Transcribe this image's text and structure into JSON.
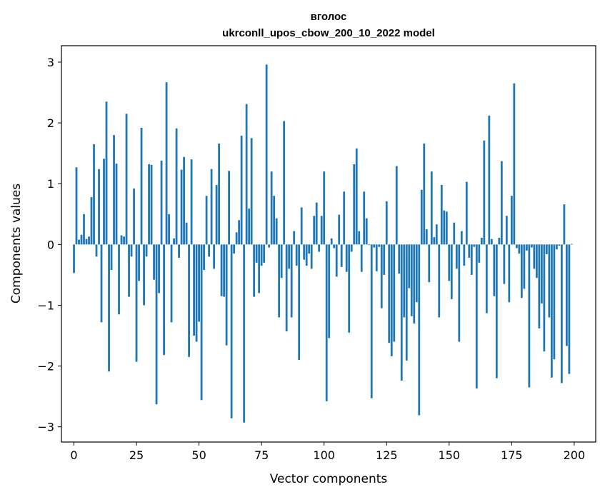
{
  "chart_data": {
    "type": "bar",
    "title_line1": "вголос",
    "title_line2": "ukrconll_upos_cbow_200_10_2022 model",
    "xlabel": "Vector components",
    "ylabel": "Components values",
    "xlim": [
      -5.0,
      208.6
    ],
    "ylim": [
      -3.25,
      3.27
    ],
    "xticks": [
      0,
      25,
      50,
      75,
      100,
      125,
      150,
      175,
      200
    ],
    "yticks": [
      3,
      2,
      1,
      0,
      -1,
      -2,
      -3
    ],
    "bar_color": "#1f77b4",
    "grid": false,
    "legend": "none",
    "values": [
      -0.47,
      1.27,
      0.08,
      0.16,
      0.5,
      0.09,
      0.13,
      0.78,
      1.65,
      -0.2,
      1.24,
      -1.28,
      1.41,
      2.35,
      -2.09,
      -0.42,
      1.8,
      1.33,
      -1.15,
      0.15,
      0.13,
      2.15,
      -0.86,
      -0.2,
      0.92,
      -1.93,
      -0.6,
      1.92,
      -1.0,
      -0.2,
      1.32,
      1.31,
      -0.58,
      -2.63,
      -0.8,
      1.38,
      -1.82,
      2.67,
      0.5,
      -1.28,
      0.1,
      1.91,
      -0.22,
      1.23,
      1.44,
      0.36,
      -1.85,
      1.4,
      -1.5,
      -1.6,
      -1.27,
      -2.56,
      -0.42,
      0.8,
      -0.2,
      1.24,
      -0.4,
      0.98,
      1.66,
      -0.85,
      -0.86,
      -1.66,
      1.21,
      -2.86,
      -0.15,
      0.2,
      0.4,
      1.79,
      -2.93,
      2.31,
      0.59,
      1.75,
      -0.86,
      -0.3,
      -0.8,
      -0.35,
      -0.3,
      2.96,
      -0.05,
      1.2,
      0.8,
      0.43,
      -1.2,
      -0.55,
      2.03,
      -1.43,
      -0.4,
      -1.2,
      0.22,
      -0.35,
      -1.9,
      0.61,
      -0.25,
      -0.35,
      -0.15,
      -0.4,
      0.47,
      0.69,
      -0.12,
      0.47,
      1.2,
      -2.58,
      -1.54,
      0.1,
      -0.06,
      -0.53,
      0.49,
      -0.37,
      0.87,
      -0.45,
      -1.45,
      -0.12,
      1.32,
      1.58,
      0.22,
      -0.45,
      0.87,
      0.43,
      -0.01,
      -2.53,
      -0.05,
      -0.44,
      -0.04,
      -1.05,
      -0.5,
      0.71,
      -1.62,
      -1.84,
      -1.6,
      1.29,
      -0.48,
      -2.24,
      -1.2,
      -1.91,
      -0.72,
      -1.18,
      -1.3,
      -0.95,
      -2.81,
      0.9,
      1.66,
      0.25,
      -0.62,
      1.2,
      0.12,
      0.33,
      -1.2,
      0.98,
      0.56,
      0.54,
      -0.6,
      -0.9,
      0.36,
      -0.4,
      -1.6,
      0.22,
      -0.35,
      1.03,
      -0.22,
      -0.5,
      -0.04,
      -2.37,
      -0.3,
      0.11,
      1.71,
      -1.13,
      2.12,
      0.09,
      -0.85,
      -2.2,
      0.11,
      1.37,
      -0.65,
      0.47,
      -0.95,
      0.8,
      2.65,
      -0.06,
      -0.15,
      -0.88,
      -0.73,
      -0.1,
      -2.35,
      -0.05,
      -0.4,
      -0.55,
      -1.38,
      -0.97,
      -1.76,
      -0.16,
      -1.2,
      -2.19,
      -1.89,
      -0.08,
      -0.02,
      -2.28,
      0.66,
      -1.67,
      -2.13,
      0.01
    ]
  }
}
